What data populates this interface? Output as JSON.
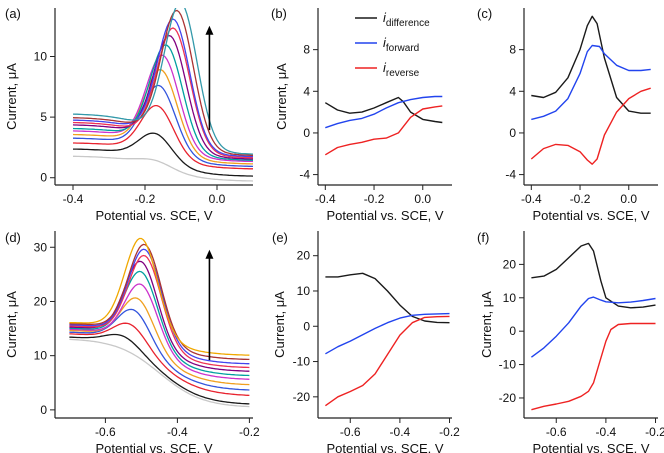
{
  "chart_data": [
    {
      "panel": "(a)",
      "type": "line",
      "xlabel": "Potential vs. SCE, V",
      "ylabel": "Current, μA",
      "xlim": [
        -0.45,
        0.1
      ],
      "ylim": [
        -0.6,
        14
      ],
      "xticks": [
        -0.4,
        -0.2,
        0.0
      ],
      "xtick_labels": [
        "-0.4",
        "-0.2",
        "0.0"
      ],
      "yticks": [
        0,
        5,
        10
      ],
      "ytick_labels": [
        "0",
        "5",
        "10"
      ],
      "annotation": "arrow pointing up (increasing concentration)",
      "curve_family": {
        "x_range": [
          -0.4,
          0.1
        ],
        "peak_x": [
          -0.17,
          -0.17,
          -0.165,
          -0.16,
          -0.155,
          -0.15,
          -0.14,
          -0.13,
          -0.12,
          -0.12,
          -0.11,
          -0.1
        ],
        "peak_height": [
          0.5,
          2.2,
          4.0,
          5.4,
          6.5,
          7.5,
          8.3,
          9.0,
          9.6,
          10.2,
          10.9,
          11.5
        ],
        "start_y": [
          1.8,
          2.4,
          2.9,
          3.3,
          3.6,
          3.9,
          4.1,
          4.4,
          4.6,
          4.8,
          5.0,
          5.3
        ],
        "end_y": [
          -0.3,
          0.1,
          0.7,
          0.9,
          1.1,
          1.3,
          1.4,
          1.5,
          1.6,
          1.7,
          1.8,
          1.9
        ],
        "colors": [
          "#c8c8c8",
          "#1a1a1a",
          "#e8232f",
          "#3355dd",
          "#f0a020",
          "#cc33cc",
          "#00a0a0",
          "#800080",
          "#ee3355",
          "#4444ee",
          "#aa3333",
          "#3399aa"
        ]
      }
    },
    {
      "panel": "(b)",
      "type": "line",
      "xlabel": "Potential vs. SCE, V",
      "ylabel": "Current, μA",
      "xlim": [
        -0.43,
        0.12
      ],
      "ylim": [
        -5,
        12
      ],
      "xticks": [
        -0.4,
        -0.2,
        0.0
      ],
      "xtick_labels": [
        "-0.4",
        "-0.2",
        "0.0"
      ],
      "yticks": [
        -4,
        0,
        4,
        8
      ],
      "ytick_labels": [
        "-4",
        "0",
        "4",
        "8"
      ],
      "legend": [
        {
          "label": "i",
          "sub": "difference",
          "color": "#1a1a1a"
        },
        {
          "label": "i",
          "sub": "forward",
          "color": "#2244ee"
        },
        {
          "label": "i",
          "sub": "reverse",
          "color": "#ee2222"
        }
      ],
      "series": [
        {
          "name": "difference",
          "color": "#1a1a1a",
          "x": [
            -0.4,
            -0.35,
            -0.3,
            -0.25,
            -0.2,
            -0.15,
            -0.1,
            -0.08,
            -0.05,
            0.0,
            0.05,
            0.08
          ],
          "y": [
            2.9,
            2.2,
            1.9,
            2.0,
            2.4,
            2.9,
            3.4,
            3.0,
            2.0,
            1.3,
            1.1,
            1.0
          ]
        },
        {
          "name": "forward",
          "color": "#2244ee",
          "x": [
            -0.4,
            -0.35,
            -0.3,
            -0.25,
            -0.2,
            -0.15,
            -0.1,
            -0.05,
            0.0,
            0.05,
            0.08
          ],
          "y": [
            0.5,
            0.9,
            1.2,
            1.4,
            1.8,
            2.4,
            2.9,
            3.2,
            3.4,
            3.5,
            3.5
          ]
        },
        {
          "name": "reverse",
          "color": "#ee2222",
          "x": [
            -0.4,
            -0.35,
            -0.3,
            -0.25,
            -0.2,
            -0.15,
            -0.1,
            -0.05,
            0.0,
            0.05,
            0.08
          ],
          "y": [
            -2.1,
            -1.4,
            -1.1,
            -0.9,
            -0.6,
            -0.5,
            0.0,
            1.5,
            2.3,
            2.5,
            2.6
          ]
        }
      ]
    },
    {
      "panel": "(c)",
      "type": "line",
      "xlabel": "Potential vs. SCE, V",
      "ylabel": "",
      "xlim": [
        -0.43,
        0.12
      ],
      "ylim": [
        -5,
        12
      ],
      "xticks": [
        -0.4,
        -0.2,
        0.0
      ],
      "xtick_labels": [
        "-0.4",
        "-0.2",
        "0.0"
      ],
      "yticks": [
        -4,
        0,
        4,
        8
      ],
      "ytick_labels": [
        "-4",
        "0",
        "4",
        "8"
      ],
      "series": [
        {
          "name": "difference",
          "color": "#1a1a1a",
          "x": [
            -0.4,
            -0.35,
            -0.3,
            -0.25,
            -0.2,
            -0.17,
            -0.15,
            -0.13,
            -0.1,
            -0.05,
            0.0,
            0.05,
            0.09
          ],
          "y": [
            3.6,
            3.4,
            3.9,
            5.3,
            8.0,
            10.3,
            11.2,
            10.5,
            7.2,
            3.4,
            2.1,
            1.9,
            1.9
          ]
        },
        {
          "name": "forward",
          "color": "#2244ee",
          "x": [
            -0.4,
            -0.35,
            -0.3,
            -0.25,
            -0.2,
            -0.17,
            -0.15,
            -0.12,
            -0.1,
            -0.05,
            0.0,
            0.05,
            0.09
          ],
          "y": [
            1.3,
            1.6,
            2.1,
            3.3,
            5.7,
            7.8,
            8.4,
            8.3,
            7.6,
            6.5,
            6.0,
            6.0,
            6.1
          ]
        },
        {
          "name": "reverse",
          "color": "#ee2222",
          "x": [
            -0.4,
            -0.35,
            -0.3,
            -0.25,
            -0.2,
            -0.17,
            -0.15,
            -0.13,
            -0.1,
            -0.05,
            0.0,
            0.05,
            0.09
          ],
          "y": [
            -2.5,
            -1.5,
            -1.1,
            -1.2,
            -1.8,
            -2.6,
            -3.0,
            -2.5,
            -0.2,
            2.0,
            3.3,
            4.0,
            4.3
          ]
        }
      ]
    },
    {
      "panel": "(d)",
      "type": "line",
      "xlabel": "Potential vs. SCE, V",
      "ylabel": "Current, μA",
      "xlim": [
        -0.74,
        -0.19
      ],
      "ylim": [
        -1.5,
        33
      ],
      "xticks": [
        -0.6,
        -0.4,
        -0.2
      ],
      "xtick_labels": [
        "-0.6",
        "-0.4",
        "-0.2"
      ],
      "yticks": [
        0,
        10,
        20,
        30
      ],
      "ytick_labels": [
        "0",
        "10",
        "20",
        "30"
      ],
      "annotation": "arrow pointing up (increasing concentration)",
      "curve_family": {
        "x_range": [
          -0.7,
          -0.2
        ],
        "peak_x": [
          -0.6,
          -0.55,
          -0.53,
          -0.52,
          -0.51,
          -0.5,
          -0.5,
          -0.5,
          -0.49,
          -0.49,
          -0.49,
          -0.5
        ],
        "peak_height": [
          0.0,
          2.0,
          4.0,
          6.5,
          8.5,
          11.0,
          13.0,
          14.5,
          15.5,
          16.3,
          16.8,
          17.3
        ],
        "start_y": [
          13.2,
          13.6,
          14.2,
          14.5,
          14.8,
          15.0,
          15.2,
          15.4,
          15.6,
          15.8,
          16.0,
          16.2
        ],
        "end_y": [
          0.4,
          0.9,
          2.5,
          3.5,
          4.5,
          5.5,
          6.2,
          7.0,
          7.7,
          8.4,
          9.2,
          10.0
        ],
        "colors": [
          "#c8c8c8",
          "#1a1a1a",
          "#e8232f",
          "#3355dd",
          "#f0a020",
          "#cc33cc",
          "#00a0a0",
          "#800080",
          "#ee3355",
          "#4444ee",
          "#aa3333",
          "#f0a800"
        ]
      }
    },
    {
      "panel": "(e)",
      "type": "line",
      "xlabel": "Potential vs. SCE, V",
      "ylabel": "Current, μA",
      "xlim": [
        -0.73,
        -0.19
      ],
      "ylim": [
        -26,
        27
      ],
      "xticks": [
        -0.6,
        -0.4,
        -0.2
      ],
      "xtick_labels": [
        "-0.6",
        "-0.4",
        "-0.2"
      ],
      "yticks": [
        -20,
        -10,
        0,
        10,
        20
      ],
      "ytick_labels": [
        "-20",
        "-10",
        "0",
        "10",
        "20"
      ],
      "series": [
        {
          "name": "difference",
          "color": "#1a1a1a",
          "x": [
            -0.7,
            -0.65,
            -0.6,
            -0.55,
            -0.5,
            -0.45,
            -0.4,
            -0.35,
            -0.3,
            -0.25,
            -0.2
          ],
          "y": [
            14.0,
            14.0,
            14.6,
            15.0,
            13.5,
            10.0,
            6.0,
            2.8,
            1.5,
            1.1,
            1.0
          ]
        },
        {
          "name": "forward",
          "color": "#2244ee",
          "x": [
            -0.7,
            -0.65,
            -0.6,
            -0.55,
            -0.5,
            -0.45,
            -0.4,
            -0.35,
            -0.3,
            -0.25,
            -0.2
          ],
          "y": [
            -7.8,
            -5.8,
            -4.2,
            -2.4,
            -0.6,
            1.0,
            2.3,
            3.1,
            3.4,
            3.5,
            3.6
          ]
        },
        {
          "name": "reverse",
          "color": "#ee2222",
          "x": [
            -0.7,
            -0.65,
            -0.6,
            -0.55,
            -0.5,
            -0.45,
            -0.4,
            -0.35,
            -0.3,
            -0.25,
            -0.2
          ],
          "y": [
            -22.5,
            -20.0,
            -18.5,
            -16.8,
            -13.5,
            -8.0,
            -2.5,
            1.0,
            2.5,
            2.7,
            2.8
          ]
        }
      ]
    },
    {
      "panel": "(f)",
      "type": "line",
      "xlabel": "Potential vs. SCE, V",
      "ylabel": "Current, μA",
      "xlim": [
        -0.73,
        -0.19
      ],
      "ylim": [
        -26,
        30
      ],
      "xticks": [
        -0.6,
        -0.4,
        -0.2
      ],
      "xtick_labels": [
        "-0.6",
        "-0.4",
        "-0.2"
      ],
      "yticks": [
        -20,
        -10,
        0,
        10,
        20
      ],
      "ytick_labels": [
        "-20",
        "-10",
        "0",
        "10",
        "20"
      ],
      "series": [
        {
          "name": "difference",
          "color": "#1a1a1a",
          "x": [
            -0.7,
            -0.65,
            -0.6,
            -0.55,
            -0.5,
            -0.47,
            -0.45,
            -0.42,
            -0.4,
            -0.35,
            -0.3,
            -0.25,
            -0.2
          ],
          "y": [
            16.0,
            16.5,
            18.5,
            22.0,
            25.5,
            26.3,
            24.0,
            15.0,
            10.0,
            7.5,
            7.0,
            7.2,
            7.8
          ]
        },
        {
          "name": "forward",
          "color": "#2244ee",
          "x": [
            -0.7,
            -0.65,
            -0.6,
            -0.55,
            -0.5,
            -0.47,
            -0.45,
            -0.42,
            -0.4,
            -0.35,
            -0.3,
            -0.25,
            -0.2
          ],
          "y": [
            -7.8,
            -5.0,
            -1.5,
            2.5,
            7.5,
            9.8,
            10.2,
            9.3,
            8.8,
            8.5,
            8.7,
            9.2,
            9.8
          ]
        },
        {
          "name": "reverse",
          "color": "#ee2222",
          "x": [
            -0.7,
            -0.65,
            -0.6,
            -0.55,
            -0.5,
            -0.47,
            -0.45,
            -0.42,
            -0.4,
            -0.38,
            -0.35,
            -0.3,
            -0.25,
            -0.2
          ],
          "y": [
            -23.5,
            -22.5,
            -21.8,
            -21.0,
            -19.5,
            -18.0,
            -15.5,
            -8.0,
            -3.0,
            0.5,
            2.0,
            2.3,
            2.3,
            2.3
          ]
        }
      ]
    }
  ]
}
